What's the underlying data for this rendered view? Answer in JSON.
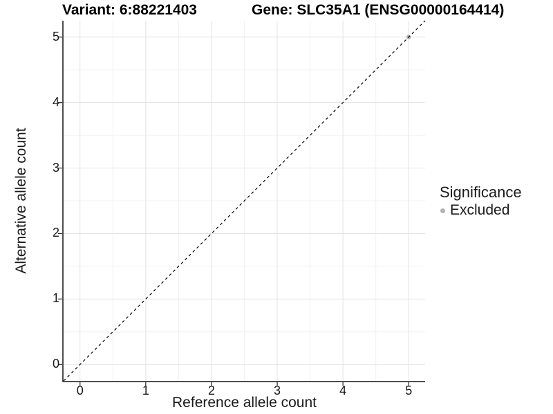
{
  "page": {
    "background": "#ffffff"
  },
  "chart_data": {
    "type": "scatter",
    "title_left": "Variant: 6:88221403",
    "title_right": "Gene: SLC35A1 (ENSG00000164414)",
    "xlabel": "Reference allele count",
    "ylabel": "Alternative allele count",
    "xlim": [
      -0.25,
      5.25
    ],
    "ylim": [
      -0.25,
      5.25
    ],
    "x_ticks": [
      0,
      1,
      2,
      3,
      4,
      5
    ],
    "y_ticks": [
      0,
      1,
      2,
      3,
      4,
      5
    ],
    "x_minor_breaks": [
      0.5,
      1.5,
      2.5,
      3.5,
      4.5
    ],
    "y_minor_breaks": [
      0.5,
      1.5,
      2.5,
      3.5,
      4.5
    ],
    "grid": "on",
    "points": [
      {
        "x": 5,
        "y": 5,
        "significance": "Excluded"
      }
    ],
    "reference_line": {
      "slope": 1,
      "intercept": 0,
      "style": "dashed",
      "color": "#000000"
    },
    "legend": {
      "title": "Significance",
      "position": "right",
      "entries": [
        {
          "label": "Excluded",
          "marker": "circle",
          "color": "#b3b3b3"
        }
      ]
    },
    "style": {
      "grid_major": "#e3e3e3",
      "grid_minor": "#f1f1f1",
      "axis_line": "#4d4d4d",
      "tick_color": "#333333",
      "point_color": "#b3b3b3",
      "point_radius": 3.3
    }
  }
}
